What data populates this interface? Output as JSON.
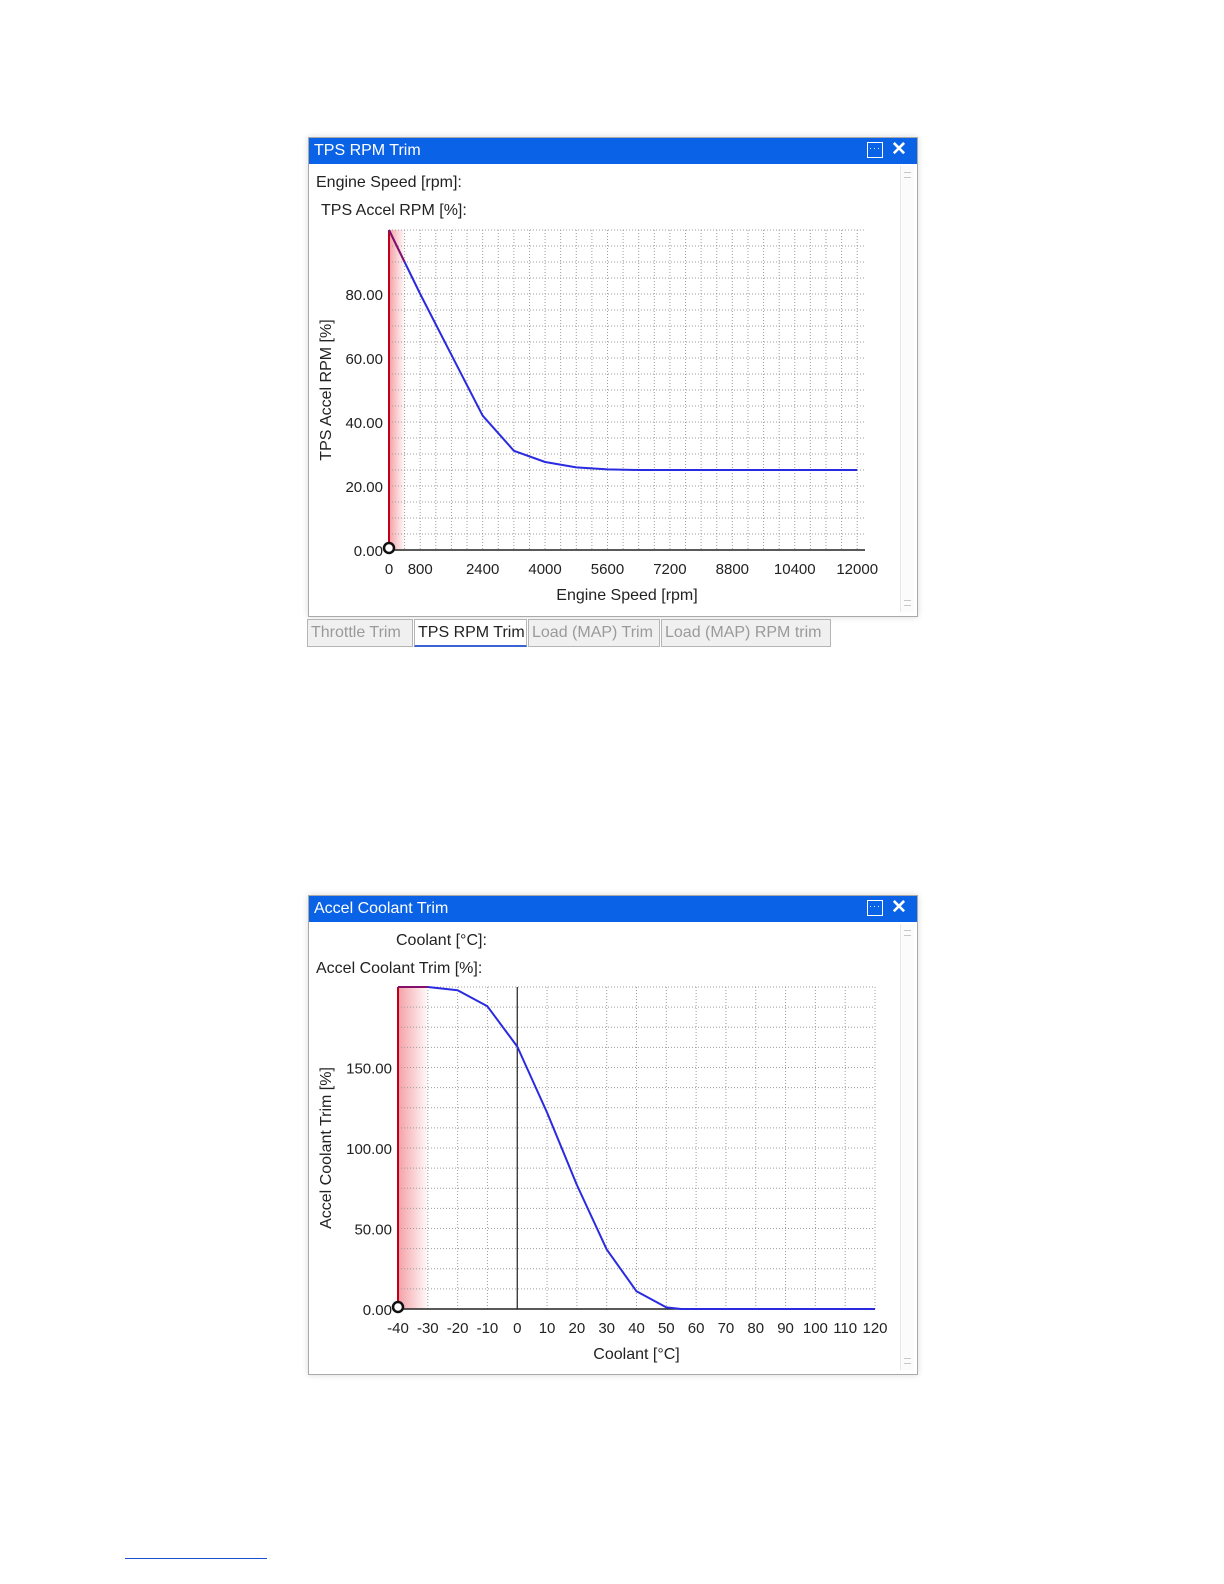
{
  "panels": [
    {
      "window_title": "TPS RPM Trim",
      "menu_icon": "window-menu-icon",
      "close_icon": "close-icon",
      "field_labels": [
        "Engine Speed [rpm]:",
        "TPS Accel RPM [%]:"
      ]
    },
    {
      "window_title": "Accel Coolant Trim",
      "menu_icon": "window-menu-icon",
      "close_icon": "close-icon",
      "field_labels": [
        "Coolant [°C]:",
        "Accel Coolant Trim [%]:"
      ]
    }
  ],
  "tabs": [
    {
      "label": "Throttle Trim",
      "active": false
    },
    {
      "label": "TPS RPM Trim",
      "active": true
    },
    {
      "label": "Load (MAP) Trim",
      "active": false
    },
    {
      "label": "Load (MAP) RPM trim",
      "active": false
    }
  ],
  "colors": {
    "titlebar": "#0a62e6",
    "curve": "#2a2ae0",
    "shade": "#f4a0a6",
    "shade_edge": "#c0001a",
    "grid": "#9c9c9c"
  },
  "chart_data": [
    {
      "type": "line",
      "title": "",
      "xlabel": "Engine Speed [rpm]",
      "ylabel": "TPS Accel RPM [%]",
      "xlim": [
        0,
        12200
      ],
      "ylim": [
        0,
        100
      ],
      "x_ticks": [
        "0",
        "800",
        "2400",
        "4000",
        "5600",
        "7200",
        "8800",
        "10400",
        "12000"
      ],
      "x_tick_values": [
        0,
        800,
        2400,
        4000,
        5600,
        7200,
        8800,
        10400,
        12000
      ],
      "y_ticks": [
        "0.00",
        "20.00",
        "40.00",
        "60.00",
        "80.00"
      ],
      "y_tick_values": [
        0,
        20,
        40,
        60,
        80
      ],
      "grid": true,
      "series": [
        {
          "x": [
            0,
            400,
            800,
            1600,
            2400,
            3200,
            4000,
            4800,
            5600,
            6400,
            8000,
            12000
          ],
          "y": [
            100,
            90,
            80,
            61,
            42,
            31,
            27.5,
            25.8,
            25.2,
            25,
            25,
            25
          ]
        }
      ]
    },
    {
      "type": "line",
      "title": "",
      "xlabel": "Coolant [°C]",
      "ylabel": "Accel Coolant Trim [%]",
      "xlim": [
        -40,
        120
      ],
      "ylim": [
        0,
        200
      ],
      "x_ticks": [
        "-40",
        "-30",
        "-20",
        "-10",
        "0",
        "10",
        "20",
        "30",
        "40",
        "50",
        "60",
        "70",
        "80",
        "90",
        "100",
        "110",
        "120"
      ],
      "x_tick_values": [
        -40,
        -30,
        -20,
        -10,
        0,
        10,
        20,
        30,
        40,
        50,
        60,
        70,
        80,
        90,
        100,
        110,
        120
      ],
      "y_ticks": [
        "0.00",
        "50.00",
        "100.00",
        "150.00"
      ],
      "y_tick_values": [
        0,
        50,
        100,
        150
      ],
      "grid": true,
      "series": [
        {
          "x": [
            -40,
            -30,
            -20,
            -10,
            0,
            10,
            20,
            30,
            40,
            50,
            55,
            120
          ],
          "y": [
            200,
            200,
            198,
            188,
            163,
            122,
            77,
            37,
            11,
            1,
            0,
            0
          ]
        }
      ]
    }
  ]
}
